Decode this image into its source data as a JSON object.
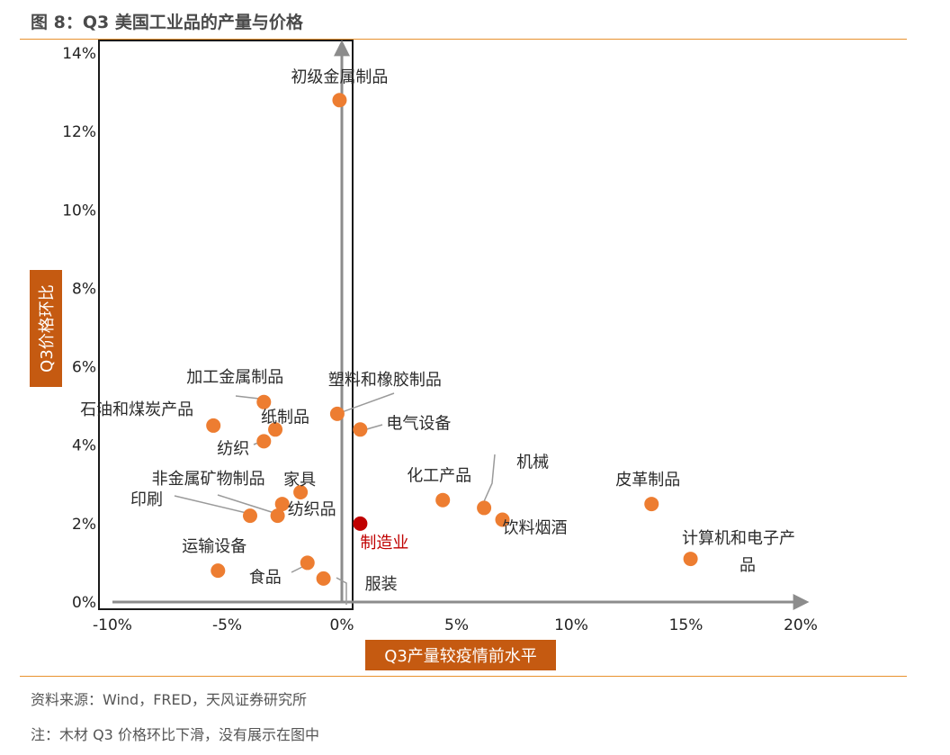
{
  "figure": {
    "title": "图 8：Q3 美国工业品的产量与价格",
    "source": "资料来源：Wind，FRED，天风证券研究所",
    "note": "注：木材 Q3 价格环比下滑，没有展示在图中"
  },
  "colors": {
    "point": "#ed7d31",
    "highlight": "#c00000",
    "axis": "#8c8c8c",
    "rule": "#e8922e",
    "axis_box": "#c55a11"
  },
  "chart_data": {
    "type": "scatter",
    "title": "",
    "xlabel": "Q3产量较疫情前水平",
    "ylabel": "Q3价格环比",
    "xlim": [
      -10,
      20
    ],
    "ylim": [
      0,
      14
    ],
    "x_ticks": [
      "-10%",
      "-5%",
      "0%",
      "5%",
      "10%",
      "15%",
      "20%"
    ],
    "y_ticks": [
      "0%",
      "2%",
      "4%",
      "6%",
      "8%",
      "10%",
      "12%",
      "14%"
    ],
    "grid": false,
    "legend": "none",
    "points": [
      {
        "name": "初级金属制品",
        "x": -0.1,
        "y": 12.8
      },
      {
        "name": "塑料和橡胶制品",
        "x": -0.2,
        "y": 4.8
      },
      {
        "name": "电气设备",
        "x": 0.8,
        "y": 4.4
      },
      {
        "name": "加工金属制品",
        "x": -3.4,
        "y": 5.1
      },
      {
        "name": "石油和煤炭产品",
        "x": -5.6,
        "y": 4.5
      },
      {
        "name": "纸制品",
        "x": -2.9,
        "y": 4.4
      },
      {
        "name": "纺织",
        "x": -3.4,
        "y": 4.1
      },
      {
        "name": "家具",
        "x": -1.8,
        "y": 2.8
      },
      {
        "name": "非金属矿物制品",
        "x": -2.8,
        "y": 2.2
      },
      {
        "name": "纺织品",
        "x": -2.6,
        "y": 2.5
      },
      {
        "name": "印刷",
        "x": -4.0,
        "y": 2.2
      },
      {
        "name": "化工产品",
        "x": 4.4,
        "y": 2.6
      },
      {
        "name": "机械",
        "x": 6.2,
        "y": 2.4
      },
      {
        "name": "饮料烟酒",
        "x": 7.0,
        "y": 2.1
      },
      {
        "name": "皮革制品",
        "x": 13.5,
        "y": 2.5
      },
      {
        "name": "计算机和电子产品",
        "x": 15.2,
        "y": 1.1
      },
      {
        "name": "制造业",
        "x": 0.8,
        "y": 2.0,
        "highlight": true
      },
      {
        "name": "运输设备",
        "x": -5.4,
        "y": 0.8
      },
      {
        "name": "食品",
        "x": -1.5,
        "y": 1.0
      },
      {
        "name": "服装",
        "x": -0.8,
        "y": 0.6
      }
    ]
  }
}
